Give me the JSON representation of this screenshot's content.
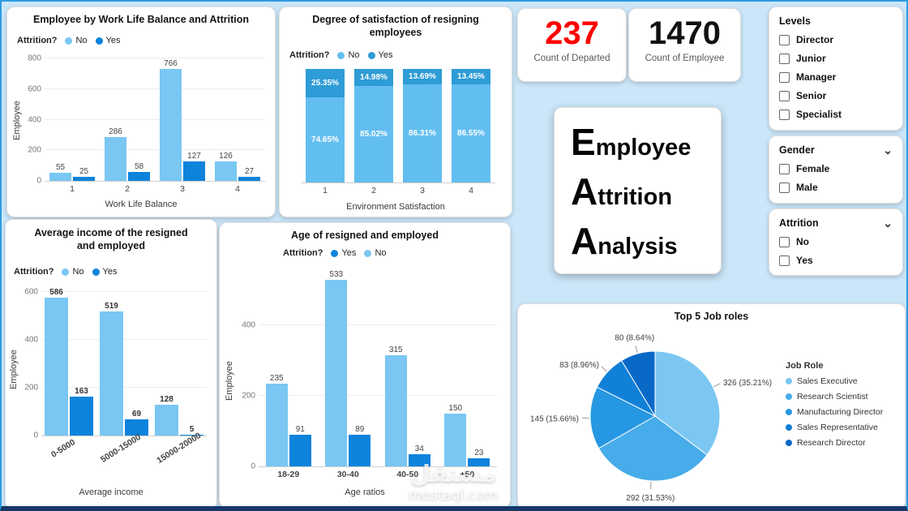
{
  "colors": {
    "light": "#79C7F2",
    "dark": "#0E83DC",
    "stack_no": "#63BEF0",
    "stack_yes": "#2E9CD6",
    "kpi_red": "#FF0000",
    "kpi_black": "#111111"
  },
  "icons": {
    "chevron_down": "⌄"
  },
  "kpi": {
    "departed": {
      "value": "237",
      "label": "Count of Departed"
    },
    "employees": {
      "value": "1470",
      "label": "Count of Employee"
    }
  },
  "title_card": {
    "words": [
      "Employee",
      "Attrition",
      "Analysis"
    ]
  },
  "filters": [
    {
      "id": "levels",
      "title": "Levels",
      "chevron": false,
      "options": [
        "Director",
        "Junior",
        "Manager",
        "Senior",
        "Specialist"
      ]
    },
    {
      "id": "gender",
      "title": "Gender",
      "chevron": true,
      "options": [
        "Female",
        "Male"
      ]
    },
    {
      "id": "attrition",
      "title": "Attrition",
      "chevron": true,
      "options": [
        "No",
        "Yes"
      ]
    }
  ],
  "watermark": {
    "line1": "مستقل",
    "line2": "mostaql.com"
  },
  "chart_data": [
    {
      "id": "wlb",
      "type": "bar",
      "title": "Employee by Work Life Balance and Attrition",
      "legend_label": "Attrition?",
      "legend": [
        {
          "label": "No",
          "color": "light"
        },
        {
          "label": "Yes",
          "color": "dark"
        }
      ],
      "categories": [
        "1",
        "2",
        "3",
        "4"
      ],
      "series": [
        {
          "name": "No",
          "color": "light",
          "values": [
            55,
            286,
            766,
            126
          ]
        },
        {
          "name": "Yes",
          "color": "dark",
          "values": [
            25,
            58,
            127,
            27
          ]
        }
      ],
      "xlabel": "Work Life Balance",
      "ylabel": "Employee",
      "ylim": [
        0,
        800
      ],
      "yticks": [
        0,
        200,
        400,
        600,
        800
      ]
    },
    {
      "id": "sat",
      "type": "stacked-bar-100",
      "title": "Degree of satisfaction of resigning employees",
      "legend_label": "Attrition?",
      "legend": [
        {
          "label": "No",
          "color": "stack_no"
        },
        {
          "label": "Yes",
          "color": "stack_yes"
        }
      ],
      "categories": [
        "1",
        "2",
        "3",
        "4"
      ],
      "series": [
        {
          "name": "Yes",
          "color": "stack_yes",
          "values": [
            25.35,
            14.98,
            13.69,
            13.45
          ]
        },
        {
          "name": "No",
          "color": "stack_no",
          "values": [
            74.65,
            85.02,
            86.31,
            86.55
          ]
        }
      ],
      "xlabel": "Environment Satisfaction"
    },
    {
      "id": "income",
      "type": "bar",
      "title": "Average income of the resigned and employed",
      "legend_label": "Attrition?",
      "legend": [
        {
          "label": "No",
          "color": "light"
        },
        {
          "label": "Yes",
          "color": "dark"
        }
      ],
      "categories": [
        "0-5000",
        "5000-15000",
        "15000-20000"
      ],
      "series": [
        {
          "name": "No",
          "color": "light",
          "values": [
            586,
            519,
            128
          ]
        },
        {
          "name": "Yes",
          "color": "dark",
          "values": [
            163,
            69,
            5
          ]
        }
      ],
      "xlabel": "Average income",
      "ylabel": "Employee",
      "ylim": [
        0,
        620
      ],
      "yticks": [
        0,
        200,
        400,
        600
      ]
    },
    {
      "id": "age",
      "type": "bar",
      "title": "Age of resigned and employed",
      "legend_label": "Attrition?",
      "legend": [
        {
          "label": "Yes",
          "color": "dark"
        },
        {
          "label": "No",
          "color": "light"
        }
      ],
      "categories": [
        "18-29",
        "30-40",
        "40-50",
        "+50"
      ],
      "series": [
        {
          "name": "No",
          "color": "light",
          "values": [
            235,
            533,
            315,
            150
          ]
        },
        {
          "name": "Yes",
          "color": "dark",
          "values": [
            91,
            89,
            34,
            23
          ]
        }
      ],
      "xlabel": "Age ratios",
      "ylabel": "Employee",
      "ylim": [
        0,
        560
      ],
      "yticks": [
        0,
        200,
        400
      ]
    },
    {
      "id": "jobs",
      "type": "pie",
      "title": "Top 5 Job roles",
      "legend_title": "Job Role",
      "slices": [
        {
          "name": "Sales Executive",
          "value": 326,
          "pct": "35.21%",
          "color": "#7CC7F2"
        },
        {
          "name": "Research Scientist",
          "value": 292,
          "pct": "31.53%",
          "color": "#47ACEA"
        },
        {
          "name": "Manufacturing Director",
          "value": 145,
          "pct": "15.66%",
          "color": "#2697E2"
        },
        {
          "name": "Sales Representative",
          "value": 83,
          "pct": "8.96%",
          "color": "#1180D7"
        },
        {
          "name": "Research Director",
          "value": 80,
          "pct": "8.64%",
          "color": "#0A69C7"
        }
      ]
    }
  ]
}
